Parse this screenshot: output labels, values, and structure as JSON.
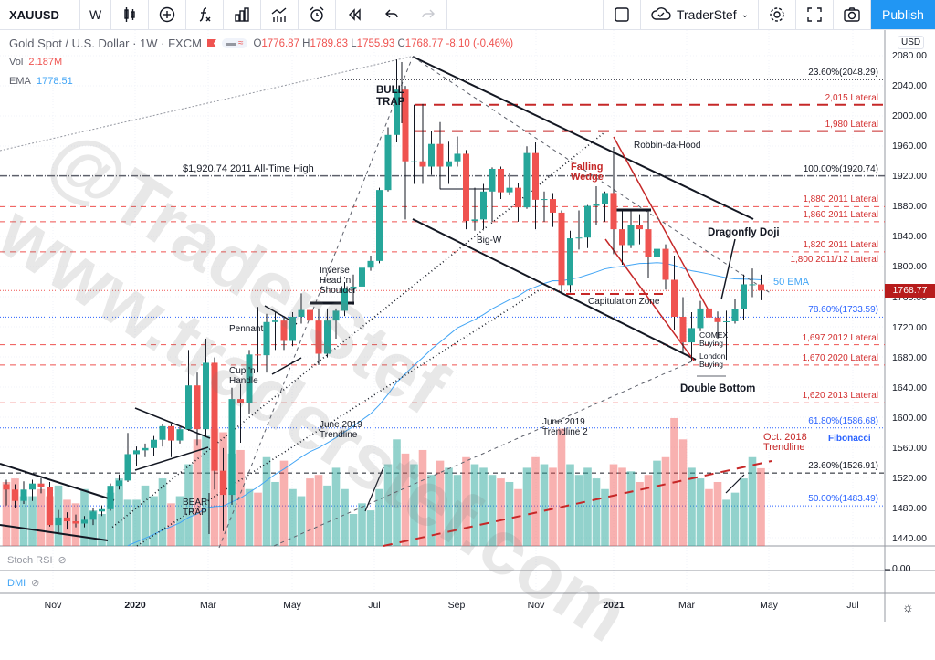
{
  "toolbar": {
    "symbol": "XAUUSD",
    "interval": "W",
    "account": "TraderStef",
    "publish": "Publish",
    "icons": [
      "candles-icon",
      "add-compare-icon",
      "fx-indicators-icon",
      "templates-icon",
      "indicator-icon",
      "alert-icon",
      "replay-icon",
      "undo-icon",
      "redo-icon",
      "layout-icon",
      "cloud-icon",
      "gear-icon",
      "fullscreen-icon",
      "camera-icon"
    ]
  },
  "legend": {
    "title": "Gold Spot / U.S. Dollar · 1W · FXCM",
    "o": "1776.87",
    "h": "1789.83",
    "l": "1755.93",
    "c": "1768.77",
    "change": "-8.10 (-0.46%)",
    "o_label": "O",
    "h_label": "H",
    "l_label": "L",
    "c_label": "C",
    "pill": "≈"
  },
  "vol": {
    "label": "Vol",
    "value": "2.187M"
  },
  "ema": {
    "label": "EMA",
    "value": "1778.51"
  },
  "panes": {
    "stoch": "Stoch RSI",
    "dmi": "DMI",
    "dmi_axis": "0.00"
  },
  "price_axis": {
    "currency": "USD",
    "current": "1768.77",
    "ticks": [
      "2080.00",
      "2040.00",
      "2000.00",
      "1960.00",
      "1920.00",
      "1880.00",
      "1840.00",
      "1800.00",
      "1760.00",
      "1720.00",
      "1680.00",
      "1640.00",
      "1600.00",
      "1560.00",
      "1520.00",
      "1480.00",
      "1440.00"
    ]
  },
  "time_axis": [
    "Nov",
    "2020",
    "Mar",
    "May",
    "Jul",
    "Sep",
    "Nov",
    "2021",
    "Mar",
    "May",
    "Jul"
  ],
  "watermark": "@TraderStef\nwww.traderstef.com",
  "levels": [
    {
      "text": "23.60%(2048.29)",
      "price": 2048.29,
      "kind": "fib-black"
    },
    {
      "text": "2,015 Lateral",
      "price": 2015,
      "kind": "red-thick"
    },
    {
      "text": "1,980 Lateral",
      "price": 1980,
      "kind": "red-thick"
    },
    {
      "text": "100.00%(1920.74)",
      "price": 1920.74,
      "kind": "fib-gray"
    },
    {
      "text": "1,880 2011 Lateral",
      "price": 1880,
      "kind": "red"
    },
    {
      "text": "1,860 2011 Lateral",
      "price": 1860,
      "kind": "red"
    },
    {
      "text": "1,820 2011 Lateral",
      "price": 1820,
      "kind": "red"
    },
    {
      "text": "1,800 2011/12 Lateral",
      "price": 1800,
      "kind": "red"
    },
    {
      "text": "78.60%(1733.59)",
      "price": 1733.59,
      "kind": "fib-blue"
    },
    {
      "text": "1,697 2012 Lateral",
      "price": 1697,
      "kind": "red"
    },
    {
      "text": "1,670 2020 Lateral",
      "price": 1670,
      "kind": "red"
    },
    {
      "text": "1,620 2013 Lateral",
      "price": 1620,
      "kind": "red"
    },
    {
      "text": "61.80%(1586.68)",
      "price": 1586.68,
      "kind": "fib-blue"
    },
    {
      "text": "23.60%(1526.91)",
      "price": 1526.91,
      "kind": "fib-black-dash"
    },
    {
      "text": "50.00%(1483.49)",
      "price": 1483.49,
      "kind": "fib-blue"
    }
  ],
  "annotations": {
    "bull_trap": "BULL\nTRAP",
    "ath": "$1,920.74 2011 All-Time High",
    "falling_wedge": "Falling\nWedge",
    "robbin": "Robbin-da-Hood",
    "big_w": "Big-W",
    "doji": "Dragonfly Doji",
    "capitulation": "Capitulation Zone",
    "ihs": "Inverse\nHead 'n\nShoulder",
    "pennant": "Pennant",
    "cup": "Cup 'n\nHandle",
    "comex": "COMEX\nBuying",
    "london": "London\nBuying",
    "double_bottom": "Double Bottom",
    "june_tl": "June 2019\nTrendline",
    "june_tl2": "June 2019\nTrendline 2",
    "oct_tl": "Oct. 2018\nTrendline",
    "fibonacci": "Fibonacci",
    "bear_trap": "BEAR\nTRAP",
    "ema50": "50 EMA"
  },
  "colors": {
    "up": "#26a69a",
    "down": "#ef5350",
    "ema": "#42a5f5",
    "accent": "#2196f3",
    "lateral": "#d32f2f"
  },
  "chart_data": {
    "type": "candlestick",
    "interval": "1W",
    "symbol": "XAUUSD",
    "ylim": [
      1420,
      2100
    ],
    "indicator": "EMA 50",
    "candles": [
      [
        1512,
        1518,
        1484,
        1505
      ],
      [
        1505,
        1512,
        1480,
        1490
      ],
      [
        1490,
        1516,
        1486,
        1505
      ],
      [
        1505,
        1518,
        1490,
        1513
      ],
      [
        1513,
        1520,
        1500,
        1509
      ],
      [
        1509,
        1515,
        1456,
        1458
      ],
      [
        1458,
        1478,
        1448,
        1468
      ],
      [
        1468,
        1475,
        1452,
        1463
      ],
      [
        1463,
        1472,
        1455,
        1460
      ],
      [
        1460,
        1470,
        1455,
        1465
      ],
      [
        1465,
        1480,
        1458,
        1476
      ],
      [
        1476,
        1484,
        1470,
        1479
      ],
      [
        1479,
        1513,
        1477,
        1510
      ],
      [
        1510,
        1525,
        1505,
        1517
      ],
      [
        1517,
        1580,
        1515,
        1552
      ],
      [
        1552,
        1562,
        1536,
        1557
      ],
      [
        1557,
        1566,
        1548,
        1560
      ],
      [
        1560,
        1576,
        1550,
        1571
      ],
      [
        1571,
        1592,
        1562,
        1589
      ],
      [
        1589,
        1592,
        1548,
        1570
      ],
      [
        1570,
        1588,
        1566,
        1585
      ],
      [
        1585,
        1690,
        1583,
        1643
      ],
      [
        1643,
        1660,
        1563,
        1585
      ],
      [
        1585,
        1705,
        1575,
        1673
      ],
      [
        1673,
        1680,
        1505,
        1530
      ],
      [
        1530,
        1560,
        1450,
        1498
      ],
      [
        1498,
        1640,
        1485,
        1625
      ],
      [
        1625,
        1645,
        1567,
        1620
      ],
      [
        1620,
        1690,
        1605,
        1684
      ],
      [
        1684,
        1747,
        1660,
        1683
      ],
      [
        1683,
        1738,
        1660,
        1727
      ],
      [
        1727,
        1740,
        1690,
        1729
      ],
      [
        1729,
        1735,
        1690,
        1702
      ],
      [
        1702,
        1740,
        1695,
        1734
      ],
      [
        1734,
        1765,
        1725,
        1743
      ],
      [
        1743,
        1745,
        1700,
        1729
      ],
      [
        1729,
        1745,
        1670,
        1685
      ],
      [
        1685,
        1745,
        1680,
        1729
      ],
      [
        1729,
        1745,
        1705,
        1742
      ],
      [
        1742,
        1780,
        1735,
        1771
      ],
      [
        1771,
        1790,
        1750,
        1774
      ],
      [
        1774,
        1818,
        1765,
        1799
      ],
      [
        1799,
        1815,
        1795,
        1808
      ],
      [
        1808,
        1905,
        1805,
        1902
      ],
      [
        1902,
        1985,
        1900,
        1975
      ],
      [
        1975,
        2075,
        1965,
        2035
      ],
      [
        2035,
        2040,
        1863,
        1940
      ],
      [
        1940,
        2015,
        1910,
        1940
      ],
      [
        1940,
        2016,
        1910,
        1933
      ],
      [
        1933,
        1980,
        1922,
        1963
      ],
      [
        1963,
        1992,
        1903,
        1933
      ],
      [
        1933,
        1966,
        1910,
        1940
      ],
      [
        1940,
        1973,
        1933,
        1950
      ],
      [
        1950,
        1955,
        1850,
        1861
      ],
      [
        1861,
        1905,
        1848,
        1863
      ],
      [
        1863,
        1910,
        1850,
        1900
      ],
      [
        1900,
        1932,
        1860,
        1930
      ],
      [
        1930,
        1933,
        1890,
        1899
      ],
      [
        1899,
        1925,
        1895,
        1905
      ],
      [
        1905,
        1911,
        1860,
        1879
      ],
      [
        1879,
        1960,
        1877,
        1951
      ],
      [
        1951,
        1965,
        1850,
        1889
      ],
      [
        1889,
        1900,
        1860,
        1890
      ],
      [
        1890,
        1898,
        1853,
        1872
      ],
      [
        1872,
        1875,
        1764,
        1776
      ],
      [
        1776,
        1848,
        1766,
        1838
      ],
      [
        1838,
        1875,
        1823,
        1839
      ],
      [
        1839,
        1882,
        1825,
        1881
      ],
      [
        1881,
        1907,
        1855,
        1883
      ],
      [
        1883,
        1900,
        1860,
        1898
      ],
      [
        1898,
        1959,
        1817,
        1850
      ],
      [
        1850,
        1875,
        1803,
        1829
      ],
      [
        1829,
        1875,
        1825,
        1855
      ],
      [
        1855,
        1870,
        1830,
        1850
      ],
      [
        1850,
        1875,
        1785,
        1813
      ],
      [
        1813,
        1855,
        1800,
        1824
      ],
      [
        1824,
        1830,
        1770,
        1783
      ],
      [
        1783,
        1815,
        1717,
        1734
      ],
      [
        1734,
        1760,
        1687,
        1700
      ],
      [
        1700,
        1740,
        1676,
        1719
      ],
      [
        1719,
        1755,
        1715,
        1745
      ],
      [
        1745,
        1756,
        1722,
        1733
      ],
      [
        1733,
        1741,
        1705,
        1727
      ],
      [
        1727,
        1742,
        1677,
        1728
      ],
      [
        1728,
        1758,
        1725,
        1744
      ],
      [
        1744,
        1790,
        1730,
        1777
      ],
      [
        1777,
        1798,
        1760,
        1777
      ],
      [
        1776.87,
        1789.83,
        1755.93,
        1768.77
      ]
    ],
    "volume_millions": [
      1.8,
      1.9,
      1.4,
      1.4,
      1.6,
      1.4,
      1.7,
      1.3,
      1.2,
      1.6,
      1.0,
      0.9,
      1.5,
      1.9,
      1.3,
      1.3,
      1.7,
      1.4,
      1.9,
      1.2,
      1.4,
      2.3,
      3.0,
      3.1,
      3.3,
      3.2,
      2.6,
      2.7,
      1.6,
      1.5,
      2.5,
      1.8,
      2.4,
      1.6,
      1.4,
      1.9,
      2.0,
      1.7,
      2.2,
      1.6,
      0.9,
      1.2,
      1.0,
      1.6,
      2.3,
      3.0,
      2.6,
      2.3,
      2.7,
      2.0,
      2.4,
      2.2,
      2.0,
      2.5,
      2.3,
      2.2,
      2.0,
      1.9,
      1.8,
      1.6,
      2.2,
      2.5,
      2.3,
      2.2,
      3.3,
      2.3,
      2.0,
      2.2,
      1.9,
      1.6,
      2.3,
      2.2,
      2.1,
      1.8,
      2.0,
      2.4,
      2.5,
      3.6,
      3.0,
      2.2,
      1.9,
      1.6,
      1.8,
      1.3,
      1.5,
      1.9,
      2.5,
      2.187
    ]
  }
}
